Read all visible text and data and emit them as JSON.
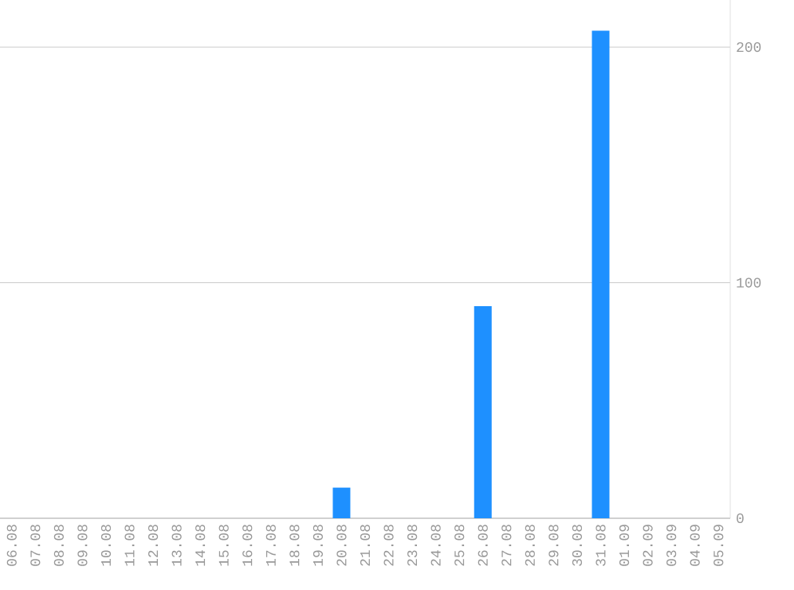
{
  "chart_data": {
    "type": "bar",
    "categories": [
      "06.08",
      "07.08",
      "08.08",
      "09.08",
      "10.08",
      "11.08",
      "12.08",
      "13.08",
      "14.08",
      "15.08",
      "16.08",
      "17.08",
      "18.08",
      "19.08",
      "20.08",
      "21.08",
      "22.08",
      "23.08",
      "24.08",
      "25.08",
      "26.08",
      "27.08",
      "28.08",
      "29.08",
      "30.08",
      "31.08",
      "01.09",
      "02.09",
      "03.09",
      "04.09",
      "05.09"
    ],
    "values": [
      0,
      0,
      0,
      0,
      0,
      0,
      0,
      0,
      0,
      0,
      0,
      0,
      0,
      0,
      13,
      0,
      0,
      0,
      0,
      0,
      90,
      0,
      0,
      0,
      0,
      207,
      0,
      0,
      0,
      0,
      0
    ],
    "color": "#1e90ff",
    "ylim": [
      0,
      220
    ],
    "yticks": [
      0,
      100,
      200
    ],
    "grid": "y"
  }
}
